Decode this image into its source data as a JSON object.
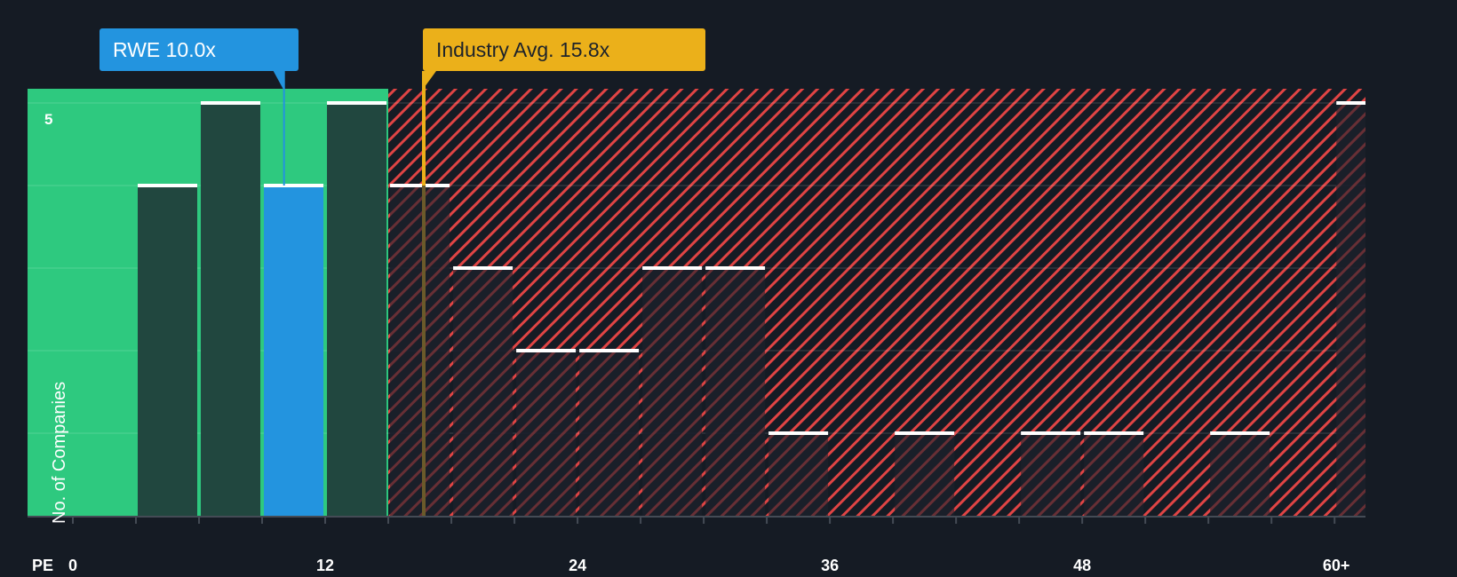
{
  "chart_data": {
    "type": "bar",
    "title": "",
    "xlabel": "PE",
    "ylabel": "No. of Companies",
    "x_tick_labels": [
      "0",
      "12",
      "24",
      "36",
      "48",
      "60+"
    ],
    "y_tick_labels": [
      "5"
    ],
    "ylim": [
      0,
      5
    ],
    "bin_width": 3,
    "categories": [
      "0-3",
      "3-6",
      "6-9",
      "9-12",
      "12-15",
      "15-18",
      "18-21",
      "21-24",
      "24-27",
      "27-30",
      "30-33",
      "33-36",
      "36-39",
      "39-42",
      "42-45",
      "45-48",
      "48-51",
      "51-54",
      "54-57",
      "57-60",
      "60+"
    ],
    "values": [
      0,
      4,
      5,
      4,
      5,
      4,
      3,
      2,
      2,
      3,
      3,
      1,
      0,
      1,
      0,
      1,
      1,
      0,
      1,
      0,
      5
    ],
    "highlight_bin": "9-12",
    "markers": [
      {
        "name": "RWE",
        "value": 10.0,
        "label": "RWE 10.0x",
        "color": "#2394df"
      },
      {
        "name": "Industry Avg.",
        "value": 15.8,
        "label": "Industry Avg. 15.8x",
        "color": "#ebb01a"
      }
    ],
    "regions": [
      {
        "name": "below-average",
        "range": [
          0,
          15.8
        ],
        "color": "#2ec97f"
      },
      {
        "name": "above-average",
        "range": [
          15.8,
          63
        ],
        "pattern": "red-hatch"
      }
    ],
    "grid": true,
    "legend": null
  },
  "labels": {
    "rwe_callout": "RWE 10.0x",
    "industry_callout": "Industry Avg. 15.8x",
    "pe": "PE",
    "y_axis": "No. of Companies",
    "y_tick_5": "5",
    "x_ticks": [
      "0",
      "12",
      "24",
      "36",
      "48",
      "60+"
    ]
  },
  "colors": {
    "background": "#151b24",
    "green_zone": "#2ec97f",
    "dark_bar": "#21473f",
    "rwe_blue": "#2394df",
    "industry_gold": "#ebb01a",
    "hatch_red": "#e04040",
    "bar_top": "#ffffff"
  }
}
